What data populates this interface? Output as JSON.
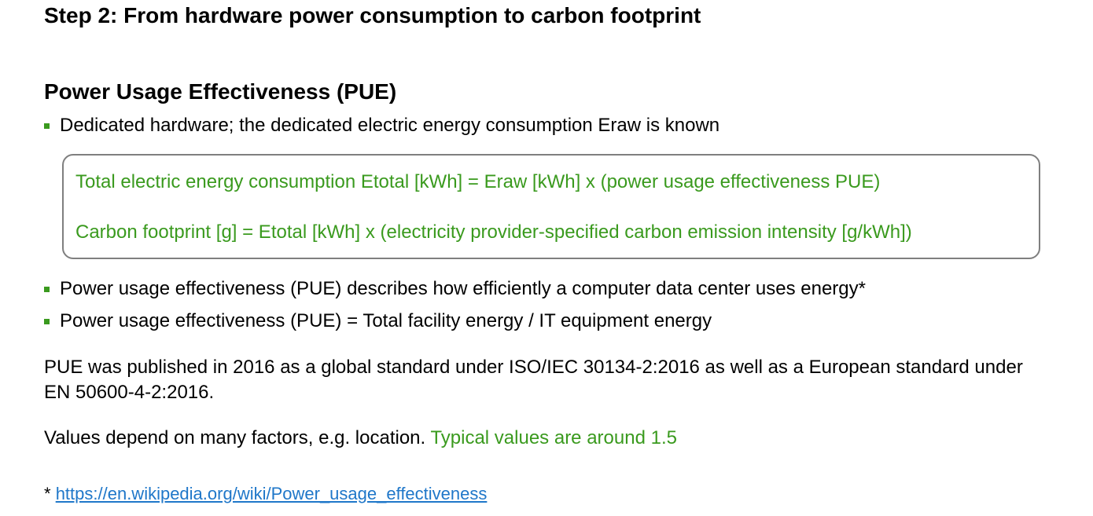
{
  "title": "Step 2: From hardware power consumption to carbon footprint",
  "section_heading": "Power Usage Effectiveness (PUE)",
  "bullets_top": [
    "Dedicated hardware; the dedicated electric energy consumption Eraw is known"
  ],
  "formulas": [
    "Total electric energy consumption Etotal [kWh] = Eraw [kWh] x (power usage effectiveness PUE)",
    "Carbon footprint [g] = Etotal [kWh] x (electricity provider-specified carbon emission intensity [g/kWh])"
  ],
  "bullets_bottom": [
    "Power usage effectiveness (PUE) describes how efficiently a computer data center uses energy*",
    "Power usage effectiveness (PUE) = Total facility energy / IT equipment energy"
  ],
  "paragraph_standard": "PUE was published in 2016 as a global standard under ISO/IEC 30134-2:2016 as well as a European standard under EN 50600-4-2:2016.",
  "paragraph_values": {
    "text": "Values depend on many factors, e.g. location. ",
    "highlight": "Typical values are around 1.5"
  },
  "footnote": {
    "marker": "* ",
    "link_text": "https://en.wikipedia.org/wiki/Power_usage_effectiveness"
  },
  "colors": {
    "accent_green": "#3a9a1e",
    "box_border": "#7f7f7f",
    "link_blue": "#1f77c9"
  }
}
